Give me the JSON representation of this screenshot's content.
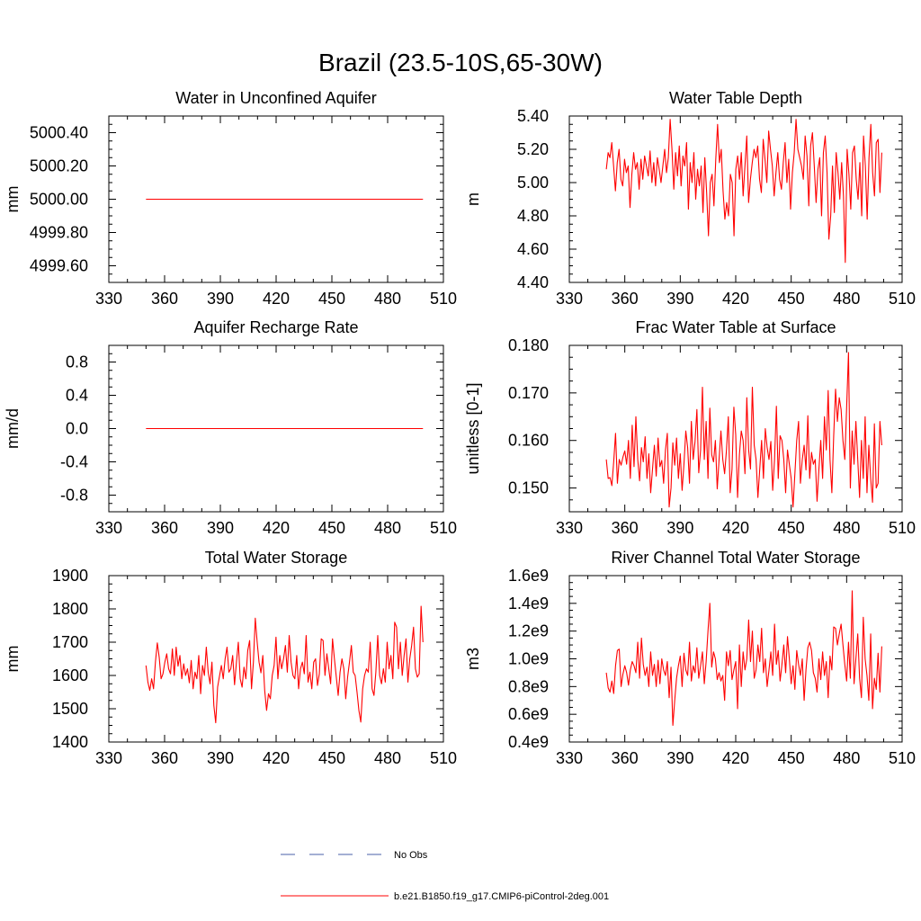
{
  "figure": {
    "title": "Brazil (23.5-10S,65-30W)"
  },
  "legend": {
    "entries": [
      {
        "label": "No Obs",
        "color": "#4a5fa8",
        "style": "dashed"
      },
      {
        "label": "b.e21.B1850.f19_g17.CMIP6-piControl-2deg.001",
        "color": "#ff0000",
        "style": "solid"
      }
    ]
  },
  "chart_data": [
    {
      "type": "line",
      "title": "Water in Unconfined Aquifer",
      "xlabel": "",
      "ylabel": "mm",
      "xlim": [
        330,
        510
      ],
      "ylim": [
        4999.5,
        5000.5
      ],
      "x_ticks": [
        "330",
        "360",
        "390",
        "420",
        "450",
        "480",
        "510"
      ],
      "y_ticks": [
        {
          "v": 5000.4,
          "label": "5000.40"
        },
        {
          "v": 5000.2,
          "label": "5000.20"
        },
        {
          "v": 5000.0,
          "label": "5000.00"
        },
        {
          "v": 4999.8,
          "label": "4999.80"
        },
        {
          "v": 4999.6,
          "label": "4999.60"
        }
      ],
      "series": [
        {
          "color": "#ff0000",
          "x_start": 350,
          "x_end": 499,
          "values": [
            5000.0,
            5000.0
          ]
        }
      ]
    },
    {
      "type": "line",
      "title": "Water Table Depth",
      "xlabel": "",
      "ylabel": "m",
      "xlim": [
        330,
        510
      ],
      "ylim": [
        4.4,
        5.4
      ],
      "x_ticks": [
        "330",
        "360",
        "390",
        "420",
        "450",
        "480",
        "510"
      ],
      "y_ticks": [
        {
          "v": 5.4,
          "label": "5.40"
        },
        {
          "v": 5.2,
          "label": "5.20"
        },
        {
          "v": 5.0,
          "label": "5.00"
        },
        {
          "v": 4.8,
          "label": "4.80"
        },
        {
          "v": 4.6,
          "label": "4.60"
        },
        {
          "v": 4.4,
          "label": "4.40"
        }
      ],
      "series": [
        {
          "color": "#ff0000",
          "x_start": 350,
          "x_end": 499,
          "values": [
            5.08,
            5.18,
            5.15,
            5.24,
            5.1,
            4.95,
            5.12,
            5.2,
            5.02,
            4.98,
            5.14,
            5.06,
            5.1,
            4.85,
            5.05,
            5.18,
            5.08,
            5.12,
            4.96,
            5.14,
            5.02,
            5.16,
            5.1,
            5.04,
            5.19,
            5.0,
            5.12,
            4.98,
            5.15,
            5.08,
            5.0,
            5.1,
            5.2,
            5.06,
            5.15,
            5.38,
            5.2,
            4.96,
            5.18,
            5.04,
            5.22,
            4.98,
            5.16,
            5.1,
            5.24,
            4.84,
            5.12,
            5.0,
            5.18,
            4.9,
            5.08,
            4.98,
            5.1,
            4.82,
            5.15,
            4.94,
            4.68,
            5.0,
            5.05,
            4.86,
            5.14,
            5.35,
            5.12,
            5.2,
            4.95,
            4.78,
            4.88,
            4.8,
            5.05,
            5.0,
            4.68,
            5.08,
            5.16,
            5.02,
            5.18,
            4.92,
            5.1,
            5.28,
            4.88,
            5.02,
            5.12,
            5.2,
            5.15,
            5.22,
            5.02,
            4.94,
            5.26,
            5.14,
            5.0,
            5.31,
            5.2,
            5.1,
            4.92,
            5.06,
            5.18,
            5.02,
            4.96,
            5.12,
            5.24,
            5.0,
            5.14,
            4.84,
            5.06,
            5.18,
            5.38,
            5.2,
            5.15,
            5.1,
            5.02,
            5.28,
            5.16,
            4.86,
            5.22,
            5.3,
            5.1,
            4.88,
            5.08,
            5.15,
            4.8,
            5.18,
            5.28,
            5.06,
            4.66,
            4.8,
            5.1,
            4.82,
            5.18,
            5.06,
            4.9,
            5.12,
            4.92,
            4.52,
            5.2,
            5.05,
            4.84,
            5.18,
            5.22,
            5.02,
            4.9,
            5.12,
            4.8,
            5.28,
            5.1,
            4.78,
            5.15,
            5.35,
            5.06,
            4.92,
            5.24,
            5.26,
            4.94,
            5.18
          ]
        }
      ]
    },
    {
      "type": "line",
      "title": "Aquifer Recharge Rate",
      "xlabel": "",
      "ylabel": "mm/d",
      "xlim": [
        330,
        510
      ],
      "ylim": [
        -1.0,
        1.0
      ],
      "x_ticks": [
        "330",
        "360",
        "390",
        "420",
        "450",
        "480",
        "510"
      ],
      "y_ticks": [
        {
          "v": 0.8,
          "label": "0.8"
        },
        {
          "v": 0.4,
          "label": "0.4"
        },
        {
          "v": 0.0,
          "label": "0.0"
        },
        {
          "v": -0.4,
          "label": "-0.4"
        },
        {
          "v": -0.8,
          "label": "-0.8"
        }
      ],
      "series": [
        {
          "color": "#ff0000",
          "x_start": 350,
          "x_end": 499,
          "values": [
            0.0,
            0.0
          ]
        }
      ]
    },
    {
      "type": "line",
      "title": "Frac Water Table at Surface",
      "xlabel": "",
      "ylabel": "unitless [0-1]",
      "xlim": [
        330,
        510
      ],
      "ylim": [
        0.145,
        0.18
      ],
      "x_ticks": [
        "330",
        "360",
        "390",
        "420",
        "450",
        "480",
        "510"
      ],
      "y_ticks": [
        {
          "v": 0.18,
          "label": "0.180"
        },
        {
          "v": 0.17,
          "label": "0.170"
        },
        {
          "v": 0.16,
          "label": "0.160"
        },
        {
          "v": 0.15,
          "label": "0.150"
        }
      ],
      "series": [
        {
          "color": "#ff0000",
          "x_start": 350,
          "x_end": 499,
          "values": [
            0.156,
            0.152,
            0.1522,
            0.1505,
            0.1555,
            0.1615,
            0.151,
            0.156,
            0.1548,
            0.1565,
            0.1578,
            0.155,
            0.16,
            0.152,
            0.1632,
            0.1545,
            0.165,
            0.156,
            0.1515,
            0.1585,
            0.1555,
            0.1608,
            0.152,
            0.1572,
            0.149,
            0.154,
            0.159,
            0.1525,
            0.1605,
            0.1545,
            0.1558,
            0.151,
            0.158,
            0.1615,
            0.146,
            0.15,
            0.1595,
            0.1548,
            0.1605,
            0.152,
            0.1572,
            0.1495,
            0.155,
            0.162,
            0.1585,
            0.151,
            0.164,
            0.156,
            0.1598,
            0.1665,
            0.1532,
            0.158,
            0.1712,
            0.156,
            0.164,
            0.152,
            0.1668,
            0.157,
            0.1555,
            0.16,
            0.1498,
            0.156,
            0.162,
            0.156,
            0.153,
            0.158,
            0.165,
            0.149,
            0.154,
            0.167,
            0.1612,
            0.148,
            0.157,
            0.162,
            0.16,
            0.153,
            0.169,
            0.158,
            0.154,
            0.1712,
            0.159,
            0.156,
            0.148,
            0.154,
            0.16,
            0.152,
            0.1625,
            0.1585,
            0.156,
            0.1598,
            0.1495,
            0.156,
            0.1672,
            0.152,
            0.161,
            0.16,
            0.156,
            0.149,
            0.158,
            0.155,
            0.152,
            0.146,
            0.153,
            0.16,
            0.164,
            0.151,
            0.156,
            0.159,
            0.1538,
            0.1652,
            0.152,
            0.1575,
            0.155,
            0.156,
            0.1472,
            0.154,
            0.16,
            0.152,
            0.165,
            0.158,
            0.1705,
            0.156,
            0.149,
            0.161,
            0.1708,
            0.164,
            0.169,
            0.1665,
            0.16,
            0.156,
            0.167,
            0.1785,
            0.15,
            0.162,
            0.155,
            0.164,
            0.156,
            0.148,
            0.16,
            0.152,
            0.165,
            0.149,
            0.159,
            0.152,
            0.147,
            0.1635,
            0.15,
            0.151,
            0.164,
            0.159
          ]
        }
      ]
    },
    {
      "type": "line",
      "title": "Total Water Storage",
      "xlabel": "",
      "ylabel": "mm",
      "xlim": [
        330,
        510
      ],
      "ylim": [
        1400,
        1900
      ],
      "x_ticks": [
        "330",
        "360",
        "390",
        "420",
        "450",
        "480",
        "510"
      ],
      "y_ticks": [
        {
          "v": 1900,
          "label": "1900"
        },
        {
          "v": 1800,
          "label": "1800"
        },
        {
          "v": 1700,
          "label": "1700"
        },
        {
          "v": 1600,
          "label": "1600"
        },
        {
          "v": 1500,
          "label": "1500"
        },
        {
          "v": 1400,
          "label": "1400"
        }
      ],
      "series": [
        {
          "color": "#ff0000",
          "x_start": 350,
          "x_end": 499,
          "values": [
            1630,
            1580,
            1555,
            1590,
            1560,
            1640,
            1698,
            1655,
            1590,
            1605,
            1640,
            1665,
            1620,
            1605,
            1680,
            1600,
            1685,
            1628,
            1660,
            1590,
            1635,
            1600,
            1620,
            1578,
            1645,
            1560,
            1610,
            1590,
            1660,
            1545,
            1630,
            1600,
            1685,
            1610,
            1575,
            1640,
            1510,
            1458,
            1565,
            1598,
            1630,
            1590,
            1650,
            1685,
            1610,
            1620,
            1660,
            1572,
            1640,
            1700,
            1590,
            1565,
            1625,
            1590,
            1675,
            1705,
            1560,
            1640,
            1772,
            1700,
            1640,
            1608,
            1660,
            1555,
            1495,
            1545,
            1530,
            1600,
            1630,
            1715,
            1590,
            1660,
            1620,
            1650,
            1690,
            1610,
            1720,
            1640,
            1600,
            1590,
            1660,
            1560,
            1620,
            1640,
            1605,
            1720,
            1580,
            1610,
            1560,
            1640,
            1650,
            1570,
            1605,
            1710,
            1705,
            1600,
            1665,
            1620,
            1575,
            1710,
            1650,
            1595,
            1540,
            1610,
            1650,
            1620,
            1530,
            1595,
            1640,
            1690,
            1610,
            1600,
            1550,
            1495,
            1460,
            1560,
            1600,
            1620,
            1610,
            1700,
            1560,
            1540,
            1610,
            1720,
            1600,
            1575,
            1620,
            1580,
            1700,
            1620,
            1660,
            1590,
            1760,
            1745,
            1620,
            1700,
            1600,
            1660,
            1710,
            1580,
            1650,
            1690,
            1745,
            1620,
            1595,
            1605,
            1808,
            1700
          ]
        }
      ]
    },
    {
      "type": "line",
      "title": "River Channel Total Water Storage",
      "xlabel": "",
      "ylabel": "m3",
      "xlim": [
        330,
        510
      ],
      "ylim": [
        0.4,
        1.6
      ],
      "y_unit": "e9",
      "x_ticks": [
        "330",
        "360",
        "390",
        "420",
        "450",
        "480",
        "510"
      ],
      "y_ticks": [
        {
          "v": 1.6,
          "label": "1.6e9"
        },
        {
          "v": 1.4,
          "label": "1.4e9"
        },
        {
          "v": 1.2,
          "label": "1.2e9"
        },
        {
          "v": 1.0,
          "label": "1.0e9"
        },
        {
          "v": 0.8,
          "label": "0.8e9"
        },
        {
          "v": 0.6,
          "label": "0.6e9"
        },
        {
          "v": 0.4,
          "label": "0.4e9"
        }
      ],
      "series": [
        {
          "color": "#ff0000",
          "x_start": 350,
          "x_end": 499,
          "values": [
            0.9,
            0.79,
            0.76,
            0.84,
            0.75,
            0.95,
            1.06,
            1.07,
            0.8,
            0.89,
            0.95,
            0.9,
            0.81,
            0.92,
            0.98,
            0.95,
            0.9,
            1.12,
            0.86,
            1.15,
            0.96,
            0.88,
            0.94,
            0.8,
            1.05,
            0.88,
            0.96,
            0.8,
            0.99,
            0.82,
            1.0,
            0.92,
            0.88,
            0.98,
            0.72,
            0.94,
            0.52,
            0.7,
            0.86,
            0.95,
            1.02,
            0.8,
            1.04,
            0.92,
            0.88,
            1.12,
            0.84,
            0.95,
            0.9,
            1.08,
            0.86,
            0.95,
            1.05,
            0.82,
            0.98,
            1.2,
            1.4,
            0.94,
            1.05,
            1.0,
            0.85,
            0.9,
            0.84,
            0.88,
            0.7,
            1.05,
            0.95,
            1.06,
            0.85,
            0.92,
            0.98,
            0.64,
            1.1,
            0.8,
            1.05,
            0.92,
            1.0,
            1.28,
            0.98,
            1.2,
            0.86,
            0.92,
            1.1,
            0.98,
            1.22,
            0.9,
            1.0,
            0.8,
            0.92,
            1.05,
            0.88,
            1.25,
            0.96,
            1.06,
            0.84,
            0.96,
            1.1,
            0.9,
            1.16,
            1.0,
            0.82,
            0.95,
            0.78,
            1.06,
            0.96,
            0.88,
            1.0,
            0.7,
            0.92,
            1.08,
            1.12,
            1.06,
            0.9,
            0.86,
            0.76,
            1.0,
            0.85,
            1.05,
            0.88,
            0.98,
            0.72,
            1.02,
            0.92,
            1.23,
            1.22,
            1.1,
            1.18,
            1.25,
            1.1,
            0.96,
            0.84,
            1.12,
            0.86,
            1.49,
            0.82,
            1.0,
            1.18,
            0.86,
            0.72,
            1.3,
            1.0,
            0.88,
            0.7,
            1.18,
            0.64,
            0.86,
            0.78,
            1.04,
            0.76,
            1.09
          ]
        }
      ]
    }
  ]
}
